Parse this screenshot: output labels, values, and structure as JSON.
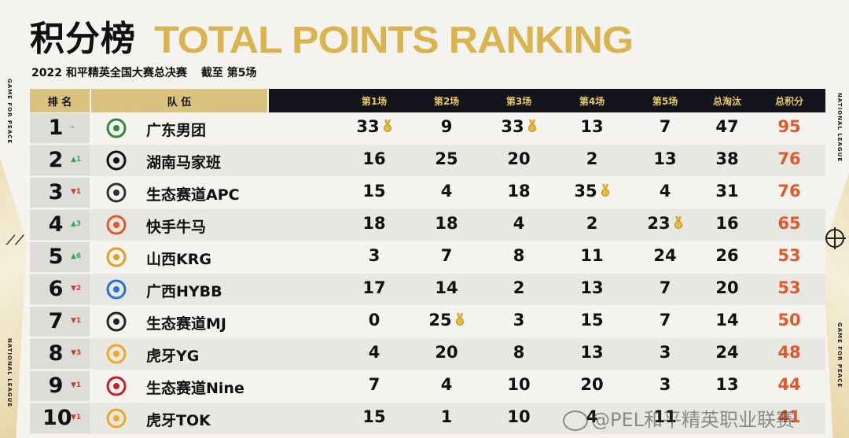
{
  "header": {
    "title_cn": "积分榜",
    "title_en": "TOTAL POINTS RANKING",
    "subtitle_event": "2022 和平精英全国大赛总决赛",
    "subtitle_cutoff": "截至 第5场"
  },
  "side": {
    "left_top": "GAME FOR PEACE",
    "left_bottom": "NATIONAL LEAGUE",
    "right_top": "NATIONAL LEAGUE",
    "right_bottom": "GAME FOR PEACE"
  },
  "columns": {
    "rank": "排 名",
    "team": "队 伍",
    "m1": "第1场",
    "m2": "第2场",
    "m3": "第3场",
    "m4": "第4场",
    "m5": "第5场",
    "elims": "总淘汰",
    "total": "总积分"
  },
  "rows": [
    {
      "rank": "1",
      "change": "–",
      "dir": "eq",
      "team": "广东男团",
      "logo": "guangdong-logo",
      "m1": "33",
      "m2": "9",
      "m3": "33",
      "m4": "13",
      "m5": "7",
      "elims": "47",
      "total": "95",
      "medals": [
        "m1",
        "m3"
      ]
    },
    {
      "rank": "2",
      "change": "▲1",
      "dir": "up",
      "team": "湖南马家班",
      "logo": "hunan-logo",
      "m1": "16",
      "m2": "25",
      "m3": "20",
      "m4": "2",
      "m5": "13",
      "elims": "38",
      "total": "76",
      "medals": []
    },
    {
      "rank": "3",
      "change": "▼1",
      "dir": "dn",
      "team": "生态赛道APC",
      "logo": "apc-logo",
      "m1": "15",
      "m2": "4",
      "m3": "18",
      "m4": "35",
      "m5": "4",
      "elims": "31",
      "total": "76",
      "medals": [
        "m4"
      ]
    },
    {
      "rank": "4",
      "change": "▲3",
      "dir": "up",
      "team": "快手牛马",
      "logo": "kuaishou-logo",
      "m1": "18",
      "m2": "18",
      "m3": "4",
      "m4": "2",
      "m5": "23",
      "elims": "16",
      "total": "65",
      "medals": [
        "m5"
      ]
    },
    {
      "rank": "5",
      "change": "▲6",
      "dir": "up",
      "team": "山西KRG",
      "logo": "krg-logo",
      "m1": "3",
      "m2": "7",
      "m3": "8",
      "m4": "11",
      "m5": "24",
      "elims": "26",
      "total": "53",
      "medals": []
    },
    {
      "rank": "6",
      "change": "▼2",
      "dir": "dn",
      "team": "广西HYBB",
      "logo": "hybb-logo",
      "m1": "17",
      "m2": "14",
      "m3": "2",
      "m4": "13",
      "m5": "7",
      "elims": "20",
      "total": "53",
      "medals": []
    },
    {
      "rank": "7",
      "change": "▼1",
      "dir": "dn",
      "team": "生态赛道MJ",
      "logo": "mj-logo",
      "m1": "0",
      "m2": "25",
      "m3": "3",
      "m4": "15",
      "m5": "7",
      "elims": "14",
      "total": "50",
      "medals": [
        "m2"
      ]
    },
    {
      "rank": "8",
      "change": "▼3",
      "dir": "dn",
      "team": "虎牙YG",
      "logo": "huya-logo",
      "m1": "4",
      "m2": "20",
      "m3": "8",
      "m4": "13",
      "m5": "3",
      "elims": "24",
      "total": "48",
      "medals": []
    },
    {
      "rank": "9",
      "change": "▼1",
      "dir": "dn",
      "team": "生态赛道Nine",
      "logo": "nine-logo",
      "m1": "7",
      "m2": "4",
      "m3": "10",
      "m4": "20",
      "m5": "3",
      "elims": "13",
      "total": "44",
      "medals": []
    },
    {
      "rank": "10",
      "change": "▼1",
      "dir": "dn",
      "team": "虎牙TOK",
      "logo": "huya-logo",
      "m1": "15",
      "m2": "1",
      "m3": "10",
      "m4": "4",
      "m5": "11",
      "elims": "",
      "total": "41",
      "medals": []
    }
  ],
  "watermark": "@PEL和平精英职业联赛",
  "colors": {
    "gold": "#d9b44f",
    "header_dark": "#14141c",
    "total_orange": "#e0592a",
    "up": "#2fa84f",
    "down": "#d33a2c"
  }
}
